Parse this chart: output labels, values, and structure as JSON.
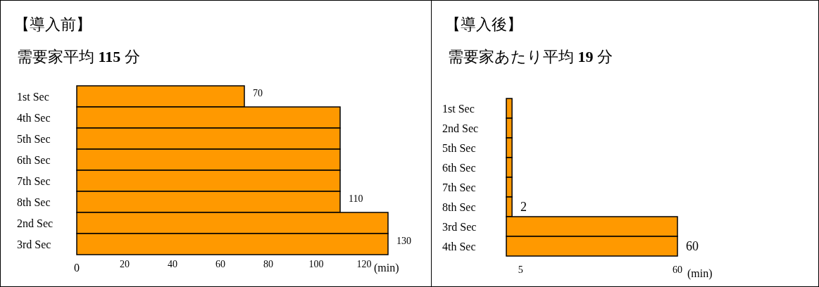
{
  "chart_data": [
    {
      "type": "bar",
      "orientation": "horizontal",
      "title": "【導入前】",
      "subtitle": "需要家平均 **115** 分",
      "categories": [
        "1st Sec",
        "4th Sec",
        "5th Sec",
        "6th Sec",
        "7th Sec",
        "8th Sec",
        "2nd Sec",
        "3rd Sec"
      ],
      "values": [
        70,
        110,
        110,
        110,
        110,
        110,
        130,
        130
      ],
      "value_labels": [
        "70",
        null,
        null,
        null,
        null,
        "110",
        null,
        "130"
      ],
      "color": "#ff9900",
      "xlim": [
        0,
        130
      ],
      "xticks": [
        0,
        20,
        40,
        60,
        80,
        100,
        120
      ],
      "xlabel": "(min)"
    },
    {
      "type": "bar",
      "orientation": "horizontal",
      "title": "【導入後】",
      "subtitle": "需要家あたり平均 **19** 分",
      "categories": [
        "1st Sec",
        "2nd Sec",
        "5th Sec",
        "6th Sec",
        "7th Sec",
        "8th Sec",
        "3rd Sec",
        "4th Sec"
      ],
      "values": [
        2,
        2,
        2,
        2,
        2,
        2,
        60,
        60
      ],
      "value_labels": [
        null,
        null,
        null,
        null,
        null,
        "2",
        null,
        "60"
      ],
      "color": "#ff9900",
      "xlim": [
        0,
        60
      ],
      "xticks": [
        5,
        60
      ],
      "xlabel": "(min)"
    }
  ]
}
